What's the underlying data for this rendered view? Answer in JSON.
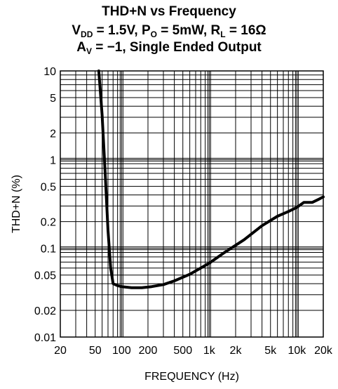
{
  "header": {
    "line1": "THD+N vs Frequency",
    "line2": {
      "v": "V",
      "v_sub": "DD",
      "v_val": " = 1.5V, P",
      "p_sub": "O",
      "p_val": " = 5mW, R",
      "r_sub": "L",
      "r_val": " = 16Ω"
    },
    "line3": {
      "a": "A",
      "a_sub": "V",
      "rest": " = −1, Single Ended Output"
    }
  },
  "chart_data": {
    "type": "line",
    "title": "THD+N vs Frequency",
    "subtitle": "VDD = 1.5V, PO = 5mW, RL = 16Ω, AV = −1, Single Ended Output",
    "xlabel": "FREQUENCY (Hz)",
    "ylabel": "THD+N (%)",
    "xscale": "log",
    "yscale": "log",
    "xlim": [
      20,
      20000
    ],
    "ylim": [
      0.01,
      10
    ],
    "grid": true,
    "x_ticks": [
      20,
      50,
      100,
      200,
      500,
      1000,
      2000,
      5000,
      10000,
      20000
    ],
    "x_tick_labels": [
      "20",
      "50",
      "100",
      "200",
      "500",
      "1k",
      "2k",
      "5k",
      "10k",
      "20k"
    ],
    "y_ticks": [
      0.01,
      0.02,
      0.05,
      0.1,
      0.2,
      0.5,
      1,
      2,
      5,
      10
    ],
    "y_tick_labels": [
      "0.01",
      "0.02",
      "0.05",
      "0.1",
      "0.2",
      "0.5",
      "1",
      "2",
      "5",
      "10"
    ],
    "series": [
      {
        "color": "#000000",
        "x": [
          55,
          60,
          65,
          70,
          75,
          80,
          90,
          100,
          130,
          170,
          220,
          300,
          400,
          600,
          1000,
          1500,
          2500,
          4000,
          6000,
          8000,
          10000,
          12000,
          15000,
          18000,
          20000
        ],
        "y": [
          10,
          3.2,
          0.7,
          0.16,
          0.06,
          0.04,
          0.038,
          0.037,
          0.036,
          0.036,
          0.037,
          0.039,
          0.043,
          0.051,
          0.068,
          0.09,
          0.125,
          0.18,
          0.23,
          0.26,
          0.29,
          0.33,
          0.33,
          0.36,
          0.38
        ]
      }
    ]
  }
}
